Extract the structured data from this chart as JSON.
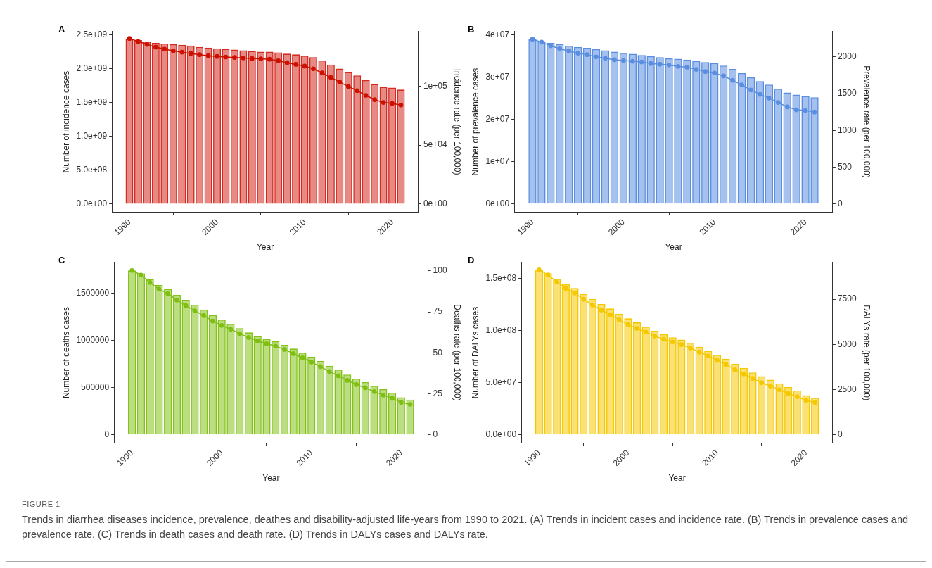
{
  "chart_data": [
    {
      "type": "bar",
      "title": "A",
      "xlabel": "Year",
      "ylabel": "Number of incidence cases",
      "y2label": "Incidence rate (per 100,000)",
      "marker": "circle",
      "x": [
        1990,
        1991,
        1992,
        1993,
        1994,
        1995,
        1996,
        1997,
        1998,
        1999,
        2000,
        2001,
        2002,
        2003,
        2004,
        2005,
        2006,
        2007,
        2008,
        2009,
        2010,
        2011,
        2012,
        2013,
        2014,
        2015,
        2016,
        2017,
        2018,
        2019,
        2020,
        2021
      ],
      "xlim": [
        1988,
        2023
      ],
      "xticks": [
        1990,
        2000,
        2010,
        2020
      ],
      "ylim": [
        -120000000,
        2550000000
      ],
      "yticks": [
        {
          "value": 0,
          "label": "0.0e+00"
        },
        {
          "value": 500000000,
          "label": "5.0e+08"
        },
        {
          "value": 1000000000,
          "label": "1.0e+09"
        },
        {
          "value": 1500000000,
          "label": "1.5e+09"
        },
        {
          "value": 2000000000,
          "label": "2.0e+09"
        },
        {
          "value": 2500000000,
          "label": "2.5e+09"
        }
      ],
      "y2lim": [
        -6900,
        146300
      ],
      "y2ticks": [
        {
          "value": 0,
          "label": "0e+00"
        },
        {
          "value": 50000,
          "label": "5e+04"
        },
        {
          "value": 100000,
          "label": "1e+05"
        }
      ],
      "series": [
        {
          "type": "bar",
          "color": "#d42a20",
          "values": [
            2440000000,
            2420000000,
            2400000000,
            2380000000,
            2370000000,
            2360000000,
            2350000000,
            2340000000,
            2320000000,
            2310000000,
            2300000000,
            2290000000,
            2280000000,
            2270000000,
            2260000000,
            2250000000,
            2250000000,
            2240000000,
            2220000000,
            2210000000,
            2190000000,
            2170000000,
            2120000000,
            2060000000,
            2000000000,
            1950000000,
            1900000000,
            1830000000,
            1770000000,
            1730000000,
            1720000000,
            1690000000
          ]
        },
        {
          "type": "line",
          "axis": "y2",
          "color": "#cc1100",
          "values": [
            140300,
            137700,
            135300,
            133000,
            131300,
            129800,
            128700,
            127600,
            126600,
            125700,
            125100,
            124600,
            124200,
            123800,
            123300,
            123100,
            122700,
            121400,
            119700,
            118400,
            116900,
            114600,
            111100,
            107300,
            103400,
            99600,
            96100,
            92100,
            88400,
            86100,
            85200,
            83900
          ]
        }
      ]
    },
    {
      "type": "bar",
      "title": "B",
      "xlabel": "Year",
      "ylabel": "Number of prevalence cases",
      "y2label": "Prevalence rate (per 100,000)",
      "marker": "circle",
      "x": [
        1990,
        1991,
        1992,
        1993,
        1994,
        1995,
        1996,
        1997,
        1998,
        1999,
        2000,
        2001,
        2002,
        2003,
        2004,
        2005,
        2006,
        2007,
        2008,
        2009,
        2010,
        2011,
        2012,
        2013,
        2014,
        2015,
        2016,
        2017,
        2018,
        2019,
        2020,
        2021
      ],
      "xlim": [
        1988,
        2023
      ],
      "xticks": [
        1990,
        2000,
        2010,
        2020
      ],
      "ylim": [
        -1950000,
        40900000
      ],
      "yticks": [
        {
          "value": 0,
          "label": "0e+00"
        },
        {
          "value": 10000000,
          "label": "1e+07"
        },
        {
          "value": 20000000,
          "label": "2e+07"
        },
        {
          "value": 30000000,
          "label": "3e+07"
        },
        {
          "value": 40000000,
          "label": "4e+07"
        }
      ],
      "y2lim": [
        -112,
        2346
      ],
      "y2ticks": [
        0,
        500,
        1000,
        1500,
        2000
      ],
      "series": [
        {
          "type": "bar",
          "color": "#5b8ee0",
          "values": [
            39000000,
            38600000,
            38200000,
            37900000,
            37500000,
            37200000,
            37000000,
            36700000,
            36400000,
            36100000,
            35800000,
            35600000,
            35300000,
            35000000,
            34800000,
            34500000,
            34400000,
            34200000,
            33900000,
            33600000,
            33400000,
            32800000,
            32000000,
            31000000,
            30000000,
            29100000,
            28300000,
            27300000,
            26400000,
            25900000,
            25600000,
            25300000
          ]
        },
        {
          "type": "line",
          "axis": "y2",
          "color": "#5b8ee0",
          "values": [
            2240,
            2200,
            2150,
            2110,
            2080,
            2050,
            2030,
            2000,
            1980,
            1960,
            1950,
            1940,
            1930,
            1910,
            1900,
            1890,
            1870,
            1860,
            1830,
            1800,
            1780,
            1740,
            1680,
            1620,
            1550,
            1490,
            1440,
            1380,
            1320,
            1280,
            1270,
            1250
          ]
        }
      ]
    },
    {
      "type": "bar",
      "title": "C",
      "xlabel": "Year",
      "ylabel": "Number of deaths cases",
      "y2label": "Deaths rate (per 100,000)",
      "marker": "circle",
      "x": [
        1990,
        1991,
        1992,
        1993,
        1994,
        1995,
        1996,
        1997,
        1998,
        1999,
        2000,
        2001,
        2002,
        2003,
        2004,
        2005,
        2006,
        2007,
        2008,
        2009,
        2010,
        2011,
        2012,
        2013,
        2014,
        2015,
        2016,
        2017,
        2018,
        2019,
        2020,
        2021
      ],
      "xlim": [
        1988,
        2023
      ],
      "xticks": [
        1990,
        2000,
        2010,
        2020
      ],
      "ylim": [
        -87000,
        1827000
      ],
      "yticks": [
        0,
        500000,
        1000000,
        1500000
      ],
      "y2lim": [
        -5,
        105.2
      ],
      "y2ticks": [
        0,
        25,
        50,
        75,
        100
      ],
      "series": [
        {
          "type": "bar",
          "color": "#84c21a",
          "values": [
            1740000,
            1708000,
            1647000,
            1588000,
            1545000,
            1481000,
            1430000,
            1377000,
            1326000,
            1268000,
            1220000,
            1174000,
            1129000,
            1084000,
            1046000,
            1014000,
            990000,
            955000,
            913000,
            870000,
            827000,
            782000,
            731000,
            691000,
            638000,
            595000,
            558000,
            520000,
            483000,
            446000,
            398000,
            374000
          ]
        },
        {
          "type": "line",
          "axis": "y2",
          "color": "#7fbf12",
          "values": [
            100.2,
            97.4,
            92.9,
            88.9,
            86.0,
            82.2,
            78.8,
            75.6,
            72.7,
            69.4,
            66.7,
            64.4,
            61.7,
            59.4,
            57.3,
            55.6,
            54.1,
            52.1,
            49.5,
            47.0,
            44.4,
            41.6,
            38.6,
            36.0,
            33.2,
            30.7,
            28.7,
            26.4,
            24.3,
            22.3,
            19.8,
            18.6
          ]
        }
      ]
    },
    {
      "type": "bar",
      "title": "D",
      "xlabel": "Year",
      "ylabel": "Number of DALYs cases",
      "y2label": "DALYs rate (per 100,000)",
      "marker": "circle",
      "x": [
        1990,
        1991,
        1992,
        1993,
        1994,
        1995,
        1996,
        1997,
        1998,
        1999,
        2000,
        2001,
        2002,
        2003,
        2004,
        2005,
        2006,
        2007,
        2008,
        2009,
        2010,
        2011,
        2012,
        2013,
        2014,
        2015,
        2016,
        2017,
        2018,
        2019,
        2020,
        2021
      ],
      "xlim": [
        1988,
        2023
      ],
      "xticks": [
        1990,
        2000,
        2010,
        2020
      ],
      "ylim": [
        -7900000,
        165800000
      ],
      "yticks": [
        {
          "value": 0,
          "label": "0.0e+00"
        },
        {
          "value": 50000000,
          "label": "5.0e+07"
        },
        {
          "value": 100000000,
          "label": "1.0e+08"
        },
        {
          "value": 150000000,
          "label": "1.5e+08"
        }
      ],
      "y2lim": [
        -455,
        9542
      ],
      "y2ticks": [
        0,
        2500,
        5000,
        7500
      ],
      "series": [
        {
          "type": "bar",
          "color": "#f5c800",
          "values": [
            158300000,
            155300000,
            149800000,
            144700000,
            141000000,
            135400000,
            130600000,
            125700000,
            121400000,
            116300000,
            111900000,
            108000000,
            103900000,
            100000000,
            96600000,
            93700000,
            91500000,
            88600000,
            84500000,
            80800000,
            76900000,
            73100000,
            68200000,
            64300000,
            59900000,
            56300000,
            52900000,
            49500000,
            45900000,
            42700000,
            38100000,
            35700000
          ]
        },
        {
          "type": "line",
          "axis": "y2",
          "color": "#f5c800",
          "values": [
            9120,
            8840,
            8450,
            8100,
            7840,
            7500,
            7180,
            6900,
            6650,
            6360,
            6100,
            5890,
            5680,
            5460,
            5290,
            5140,
            4990,
            4800,
            4580,
            4360,
            4120,
            3900,
            3600,
            3370,
            3120,
            2880,
            2700,
            2490,
            2290,
            2110,
            1900,
            1790
          ]
        }
      ]
    },
    {
      "type": "other",
      "title": "FIGURE 1",
      "annotations": [
        "Trends in diarrhea diseases incidence, prevalence, deathes and disability-adjusted life-years from 1990 to 2021. (A) Trends in incident cases and incidence rate. (B) Trends in prevalence cases and prevalence rate. (C) Trends in death cases and death rate. (D) Trends in DALYs cases and DALYs rate."
      ]
    }
  ]
}
